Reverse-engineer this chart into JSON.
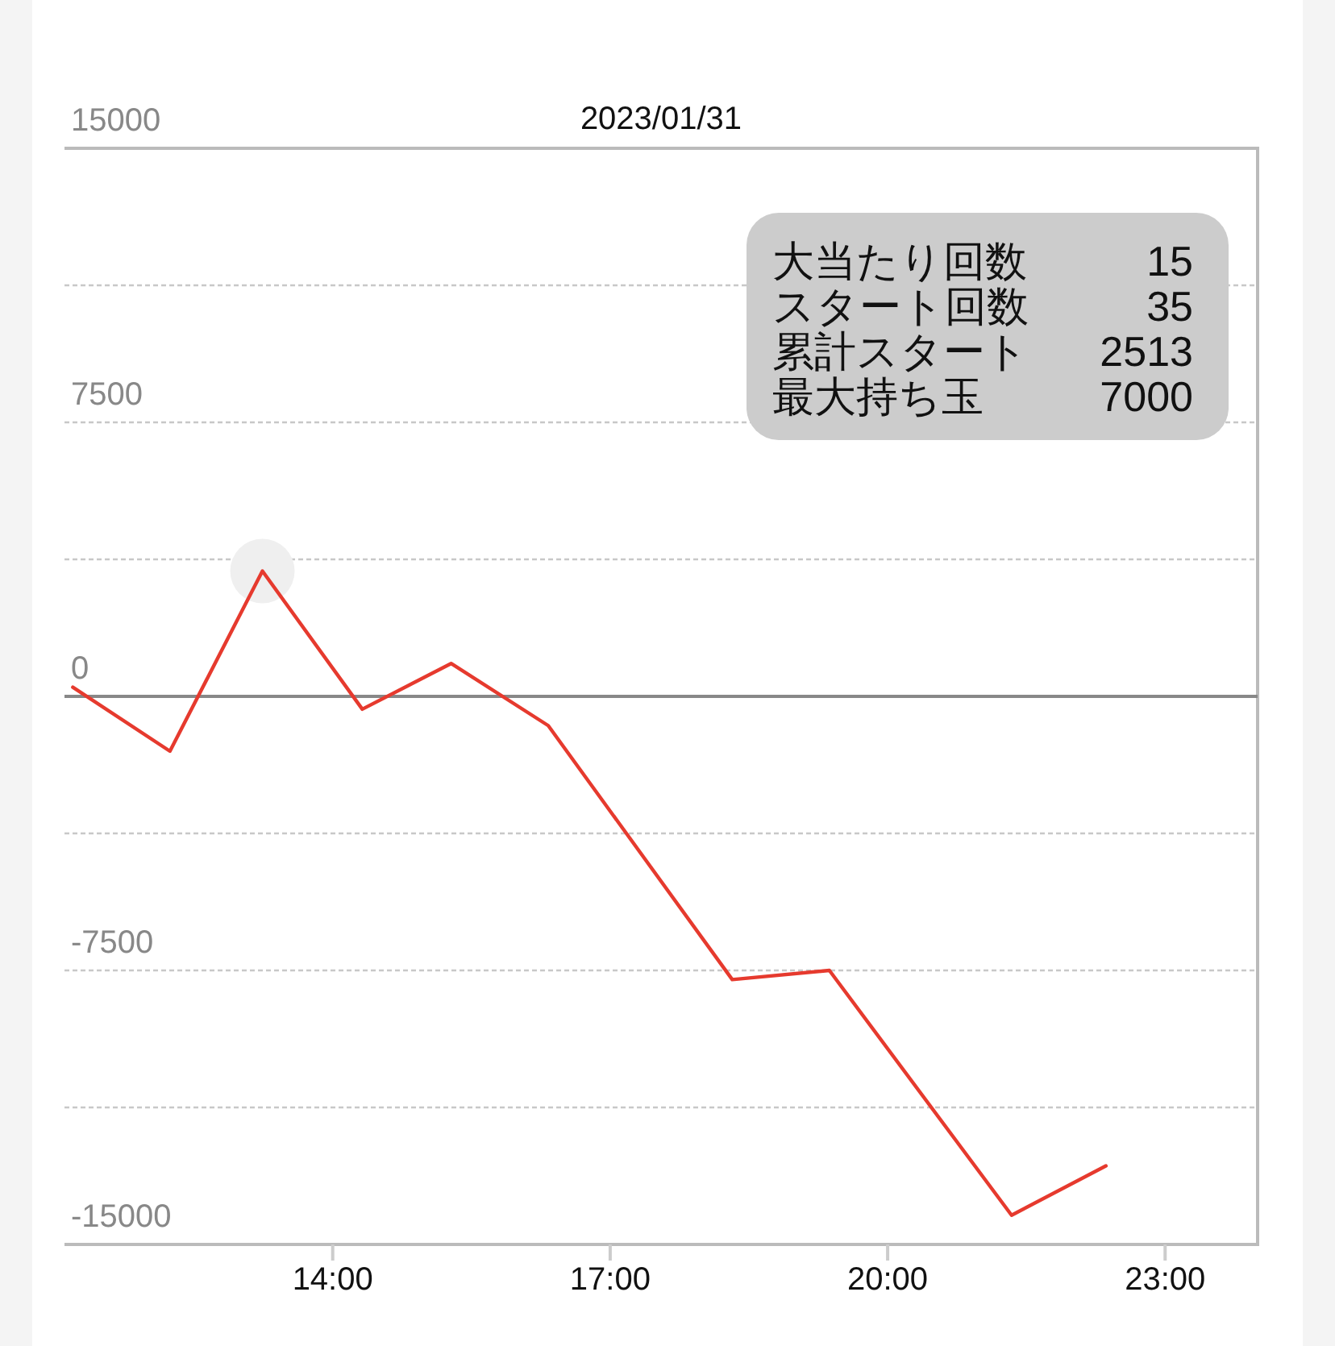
{
  "chart_data": {
    "type": "line",
    "title": "2023/01/31",
    "xlim": [
      11.1,
      24
    ],
    "xticks": [
      {
        "value": 14,
        "label": "14:00"
      },
      {
        "value": 17,
        "label": "17:00"
      },
      {
        "value": 20,
        "label": "20:00"
      },
      {
        "value": 23,
        "label": "23:00"
      }
    ],
    "ylim": [
      -15000,
      15000
    ],
    "yticks": [
      15000,
      {
        "value": 11250,
        "label": null
      },
      7500,
      {
        "value": 3750,
        "label": null
      },
      0,
      {
        "value": -3750,
        "label": null
      },
      -7500,
      {
        "value": -11250,
        "label": null
      },
      -15000
    ],
    "grid": "y",
    "ref_lines": [
      {
        "axis": "y",
        "value": 0,
        "color": "#888888"
      }
    ],
    "series": [
      {
        "type": "scatter",
        "marker": "circle",
        "color": "#efefef",
        "x": [
          13.24
        ],
        "values": [
          3430
        ]
      },
      {
        "color": "#e63a2e",
        "x": [
          11.19,
          12.24,
          13.24,
          14.32,
          15.28,
          16.33,
          18.32,
          19.37,
          21.34,
          22.36
        ],
        "values": [
          250,
          -1500,
          3430,
          -350,
          900,
          -800,
          -7750,
          -7500,
          -14200,
          -12850
        ]
      }
    ],
    "annotations": [
      "大当たり回数",
      "15",
      "スタート回数",
      "35",
      "累計スタート",
      "2513",
      "最大持ち玉",
      "7000"
    ]
  }
}
